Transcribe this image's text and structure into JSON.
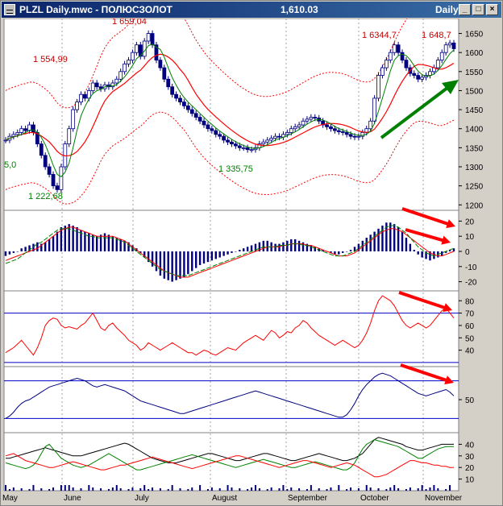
{
  "window": {
    "title": "PLZL Daily.mwc - ПОЛЮСЗОЛОТ",
    "last_price": "1,610.03",
    "period": "Daily",
    "minimize": "_",
    "maximize": "□",
    "close": "×"
  },
  "colors": {
    "background": "#ffffff",
    "grid": "#a0a0a0",
    "candles": "#00007f",
    "ma_red": "#ff0000",
    "ma_green": "#008000",
    "annotation_red": "#c00000",
    "annotation_green": "#008000",
    "trend_arrow": "#008000",
    "warning_arrow": "#ff0000",
    "level_lines": "#0000cc"
  },
  "chart_data": [
    {
      "type": "candlestick",
      "panel": "price",
      "x": [
        "May",
        "June",
        "July",
        "August",
        "September",
        "October",
        "November"
      ],
      "price_axis_ticks": [
        1200,
        1250,
        1300,
        1350,
        1400,
        1450,
        1500,
        1550,
        1600,
        1650
      ],
      "ylim": [
        1190,
        1685
      ],
      "ohlc_close": [
        1370,
        1380,
        1385,
        1390,
        1400,
        1395,
        1410,
        1390,
        1360,
        1330,
        1300,
        1280,
        1250,
        1240,
        1300,
        1360,
        1400,
        1450,
        1470,
        1490,
        1480,
        1500,
        1520,
        1510,
        1505,
        1515,
        1510,
        1520,
        1530,
        1550,
        1570,
        1580,
        1600,
        1620,
        1590,
        1630,
        1650,
        1620,
        1580,
        1560,
        1530,
        1510,
        1490,
        1480,
        1470,
        1460,
        1450,
        1440,
        1430,
        1420,
        1410,
        1400,
        1395,
        1385,
        1380,
        1370,
        1365,
        1360,
        1355,
        1350,
        1350,
        1345,
        1345,
        1350,
        1360,
        1365,
        1370,
        1375,
        1380,
        1378,
        1385,
        1390,
        1400,
        1405,
        1410,
        1420,
        1425,
        1430,
        1428,
        1420,
        1410,
        1405,
        1400,
        1395,
        1392,
        1390,
        1385,
        1380,
        1378,
        1380,
        1390,
        1400,
        1420,
        1480,
        1540,
        1560,
        1580,
        1600,
        1620,
        1600,
        1580,
        1560,
        1545,
        1540,
        1530,
        1535,
        1540,
        1550,
        1560,
        1580,
        1600,
        1620,
        1625,
        1610
      ],
      "annotations": [
        "1 659,04",
        "1 554,99",
        "1 222,68",
        "1 335,75",
        "1 6344,7",
        "1 648,7",
        "5,0"
      ],
      "overlays": [
        "moving average (red)",
        "moving average (green)",
        "envelope bands (red dotted)"
      ]
    },
    {
      "type": "bar",
      "panel": "macd",
      "axis_ticks": [
        -20,
        -10,
        0,
        10,
        20
      ],
      "ylim": [
        -25,
        25
      ],
      "values": [
        -3,
        -2,
        -1,
        0,
        2,
        3,
        4,
        5,
        6,
        5,
        6,
        8,
        10,
        13,
        16,
        17,
        18,
        17,
        16,
        14,
        13,
        12,
        11,
        10,
        11,
        12,
        11,
        10,
        9,
        8,
        7,
        6,
        4,
        2,
        -1,
        -4,
        -7,
        -10,
        -13,
        -16,
        -18,
        -19,
        -20,
        -19,
        -18,
        -17,
        -15,
        -13,
        -11,
        -9,
        -8,
        -7,
        -6,
        -5,
        -4,
        -3,
        -2,
        -1,
        0,
        1,
        2,
        3,
        4,
        5,
        6,
        7,
        7,
        6,
        5,
        5,
        6,
        7,
        8,
        8,
        7,
        6,
        5,
        4,
        3,
        2,
        1,
        0,
        -1,
        -2,
        -2,
        -1,
        0,
        1,
        3,
        5,
        7,
        9,
        11,
        13,
        15,
        17,
        19,
        19,
        18,
        16,
        13,
        9,
        5,
        1,
        -2,
        -4,
        -5,
        -6,
        -5,
        -4,
        -3,
        -1,
        1,
        2
      ],
      "signal_red": [
        -6,
        -5,
        -4,
        -3,
        -2,
        -1,
        0,
        1,
        2,
        4,
        6,
        8,
        10,
        12,
        14,
        15,
        16,
        16,
        15,
        14,
        13,
        12,
        11,
        10,
        10,
        10,
        10,
        10,
        9,
        8,
        7,
        5,
        3,
        1,
        -1,
        -3,
        -5,
        -7,
        -9,
        -11,
        -13,
        -14,
        -15,
        -16,
        -17,
        -17,
        -17,
        -16,
        -15,
        -14,
        -13,
        -12,
        -11,
        -10,
        -9,
        -8,
        -7,
        -6,
        -5,
        -4,
        -3,
        -2,
        -1,
        0,
        1,
        2,
        3,
        3,
        3,
        3,
        4,
        4,
        5,
        5,
        5,
        5,
        4,
        4,
        3,
        2,
        1,
        0,
        -1,
        -2,
        -3,
        -3,
        -3,
        -2,
        -1,
        1,
        3,
        5,
        7,
        9,
        11,
        13,
        14,
        15,
        15,
        14,
        13,
        11,
        9,
        7,
        5,
        3,
        1,
        -1,
        -2,
        -3,
        -3,
        -2,
        -1,
        0
      ],
      "signal_green": [
        -8,
        -7,
        -6,
        -5,
        -3,
        -1,
        1,
        3,
        5,
        6,
        8,
        10,
        12,
        14,
        15,
        15,
        15,
        14,
        13,
        12,
        11,
        10,
        10,
        9,
        9,
        9,
        9,
        9,
        8,
        7,
        6,
        4,
        2,
        0,
        -2,
        -4,
        -6,
        -8,
        -10,
        -12,
        -13,
        -14,
        -15,
        -16,
        -16,
        -16,
        -16,
        -15,
        -14,
        -13,
        -12,
        -11,
        -10,
        -9,
        -8,
        -7,
        -6,
        -5,
        -4,
        -3,
        -2,
        -1,
        0,
        1,
        2,
        3,
        3,
        3,
        3,
        4,
        4,
        4,
        5,
        5,
        5,
        4,
        4,
        3,
        2,
        1,
        0,
        -1,
        -2,
        -3,
        -3,
        -3,
        -2,
        -1,
        0,
        2,
        4,
        6,
        8,
        10,
        12,
        14,
        16,
        17,
        17,
        16,
        14,
        12,
        9,
        6,
        3,
        1,
        -1,
        -2,
        -3,
        -2,
        -1,
        0,
        1,
        2
      ]
    },
    {
      "type": "line",
      "panel": "rsi",
      "axis_ticks": [
        40,
        50,
        60,
        70,
        80
      ],
      "ylim": [
        28,
        88
      ],
      "level_lines": [
        70,
        30
      ],
      "values": [
        38,
        40,
        42,
        45,
        48,
        44,
        40,
        36,
        42,
        50,
        60,
        64,
        66,
        65,
        60,
        58,
        59,
        58,
        57,
        60,
        62,
        66,
        70,
        64,
        58,
        56,
        60,
        62,
        58,
        55,
        52,
        48,
        46,
        44,
        40,
        42,
        46,
        44,
        42,
        40,
        42,
        44,
        46,
        44,
        42,
        40,
        38,
        38,
        36,
        38,
        40,
        39,
        37,
        36,
        38,
        40,
        42,
        41,
        40,
        43,
        46,
        48,
        50,
        52,
        50,
        48,
        52,
        56,
        54,
        50,
        52,
        55,
        54,
        58,
        60,
        64,
        62,
        58,
        55,
        52,
        50,
        48,
        46,
        44,
        46,
        48,
        46,
        44,
        42,
        44,
        48,
        54,
        62,
        72,
        80,
        84,
        82,
        80,
        76,
        70,
        64,
        60,
        58,
        60,
        62,
        60,
        58,
        60,
        64,
        68,
        72,
        74,
        70,
        66
      ]
    },
    {
      "type": "line",
      "panel": "stochastic",
      "axis_ticks": [
        50
      ],
      "ylim": [
        0,
        100
      ],
      "level_lines": [
        80,
        20
      ],
      "values": [
        20,
        24,
        30,
        38,
        44,
        48,
        50,
        54,
        58,
        62,
        66,
        70,
        72,
        74,
        76,
        78,
        80,
        82,
        84,
        82,
        80,
        76,
        72,
        70,
        72,
        74,
        72,
        70,
        68,
        66,
        64,
        60,
        56,
        52,
        48,
        46,
        44,
        42,
        40,
        38,
        36,
        34,
        32,
        30,
        28,
        28,
        30,
        32,
        34,
        36,
        38,
        40,
        42,
        44,
        46,
        48,
        50,
        52,
        54,
        56,
        58,
        60,
        62,
        64,
        62,
        60,
        58,
        56,
        54,
        52,
        50,
        48,
        46,
        44,
        42,
        40,
        38,
        36,
        34,
        32,
        30,
        28,
        26,
        24,
        22,
        22,
        26,
        34,
        44,
        56,
        66,
        74,
        80,
        86,
        90,
        92,
        90,
        88,
        84,
        80,
        76,
        72,
        68,
        64,
        60,
        58,
        56,
        58,
        60,
        62,
        64,
        66,
        62,
        56
      ]
    },
    {
      "type": "line",
      "panel": "adx_dmi",
      "axis_ticks": [
        10,
        20,
        30,
        40
      ],
      "ylim": [
        0,
        50
      ],
      "series": [
        {
          "values": [
            28,
            28,
            29,
            30,
            31,
            32,
            33,
            34,
            35,
            36,
            37,
            36,
            35,
            34,
            33,
            32,
            31,
            30,
            30,
            30,
            31,
            32,
            33,
            34,
            35,
            36,
            37,
            38,
            39,
            40,
            41,
            40,
            38,
            36,
            34,
            32,
            30,
            28,
            27,
            26,
            25,
            24,
            24,
            24,
            25,
            26,
            27,
            28,
            29,
            30,
            31,
            32,
            32,
            31,
            30,
            29,
            28,
            27,
            26,
            26,
            27,
            28,
            29,
            30,
            31,
            32,
            32,
            31,
            30,
            29,
            28,
            27,
            26,
            26,
            27,
            28,
            29,
            30,
            31,
            32,
            31,
            30,
            29,
            28,
            27,
            26,
            26,
            27,
            28,
            30,
            32,
            36,
            40,
            44,
            46,
            45,
            44,
            43,
            42,
            41,
            40,
            38,
            37,
            36,
            35,
            35,
            36,
            37,
            38,
            39,
            40,
            40,
            40,
            40
          ]
        },
        {
          "values": [
            24,
            23,
            22,
            21,
            20,
            19,
            20,
            22,
            26,
            32,
            38,
            40,
            36,
            32,
            28,
            26,
            24,
            22,
            21,
            20,
            21,
            22,
            24,
            26,
            28,
            30,
            32,
            30,
            28,
            26,
            24,
            22,
            20,
            18,
            18,
            19,
            20,
            21,
            22,
            23,
            24,
            25,
            26,
            27,
            28,
            29,
            30,
            31,
            30,
            29,
            28,
            27,
            26,
            25,
            24,
            23,
            22,
            21,
            20,
            21,
            22,
            23,
            24,
            25,
            26,
            27,
            26,
            25,
            24,
            23,
            22,
            21,
            20,
            20,
            21,
            22,
            23,
            24,
            25,
            24,
            23,
            22,
            21,
            20,
            19,
            18,
            18,
            20,
            24,
            30,
            36,
            40,
            42,
            44,
            43,
            42,
            41,
            40,
            39,
            38,
            36,
            34,
            32,
            30,
            28,
            28,
            30,
            32,
            34,
            36,
            37,
            38,
            38,
            38
          ]
        },
        {
          "values": [
            30,
            31,
            32,
            30,
            28,
            26,
            25,
            24,
            23,
            22,
            21,
            20,
            20,
            21,
            22,
            23,
            24,
            25,
            24,
            23,
            22,
            21,
            20,
            19,
            18,
            18,
            19,
            20,
            21,
            22,
            22,
            23,
            24,
            25,
            26,
            27,
            28,
            29,
            28,
            27,
            26,
            25,
            24,
            23,
            22,
            21,
            20,
            19,
            20,
            21,
            22,
            23,
            24,
            25,
            26,
            27,
            28,
            29,
            30,
            30,
            29,
            28,
            27,
            26,
            25,
            24,
            23,
            22,
            21,
            20,
            21,
            22,
            23,
            24,
            25,
            26,
            26,
            25,
            24,
            23,
            22,
            21,
            20,
            21,
            22,
            23,
            24,
            23,
            22,
            20,
            18,
            16,
            14,
            12,
            12,
            13,
            14,
            16,
            18,
            20,
            22,
            24,
            26,
            26,
            25,
            24,
            24,
            23,
            22,
            22,
            21,
            21,
            20,
            20
          ]
        }
      ]
    }
  ]
}
